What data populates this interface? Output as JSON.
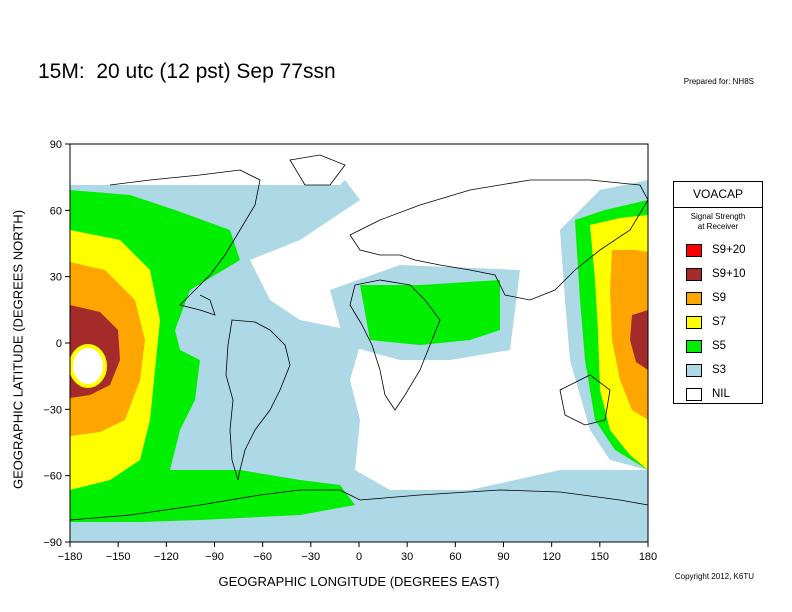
{
  "title": "15M:  20 utc (12 pst) Sep 77ssn",
  "prepared_for": "Prepared for: NH8S",
  "copyright": "Copyright 2012, K6TU",
  "axes": {
    "x_label": "GEOGRAPHIC LONGITUDE (DEGREES EAST)",
    "y_label": "GEOGRAPHIC LATITUDE (DEGREES NORTH)",
    "x_ticks": [
      "−180",
      "−150",
      "−120",
      "−90",
      "−60",
      "−30",
      "0",
      "30",
      "60",
      "90",
      "120",
      "150",
      "180"
    ],
    "y_ticks": [
      "90",
      "60",
      "30",
      "0",
      "−30",
      "−60",
      "−90"
    ],
    "x_range": [
      -180,
      180
    ],
    "y_range": [
      -90,
      90
    ]
  },
  "legend": {
    "title": "VOACAP",
    "subtitle_line1": "Signal Strength",
    "subtitle_line2": "at Receiver",
    "items": [
      {
        "label": "S9+20",
        "color": "#ff0000"
      },
      {
        "label": "S9+10",
        "color": "#a52a2a"
      },
      {
        "label": "S9",
        "color": "#ffa500"
      },
      {
        "label": "S7",
        "color": "#ffff00"
      },
      {
        "label": "S5",
        "color": "#00ee00"
      },
      {
        "label": "S3",
        "color": "#add8e6"
      },
      {
        "label": "NIL",
        "color": "#ffffff"
      }
    ]
  }
}
